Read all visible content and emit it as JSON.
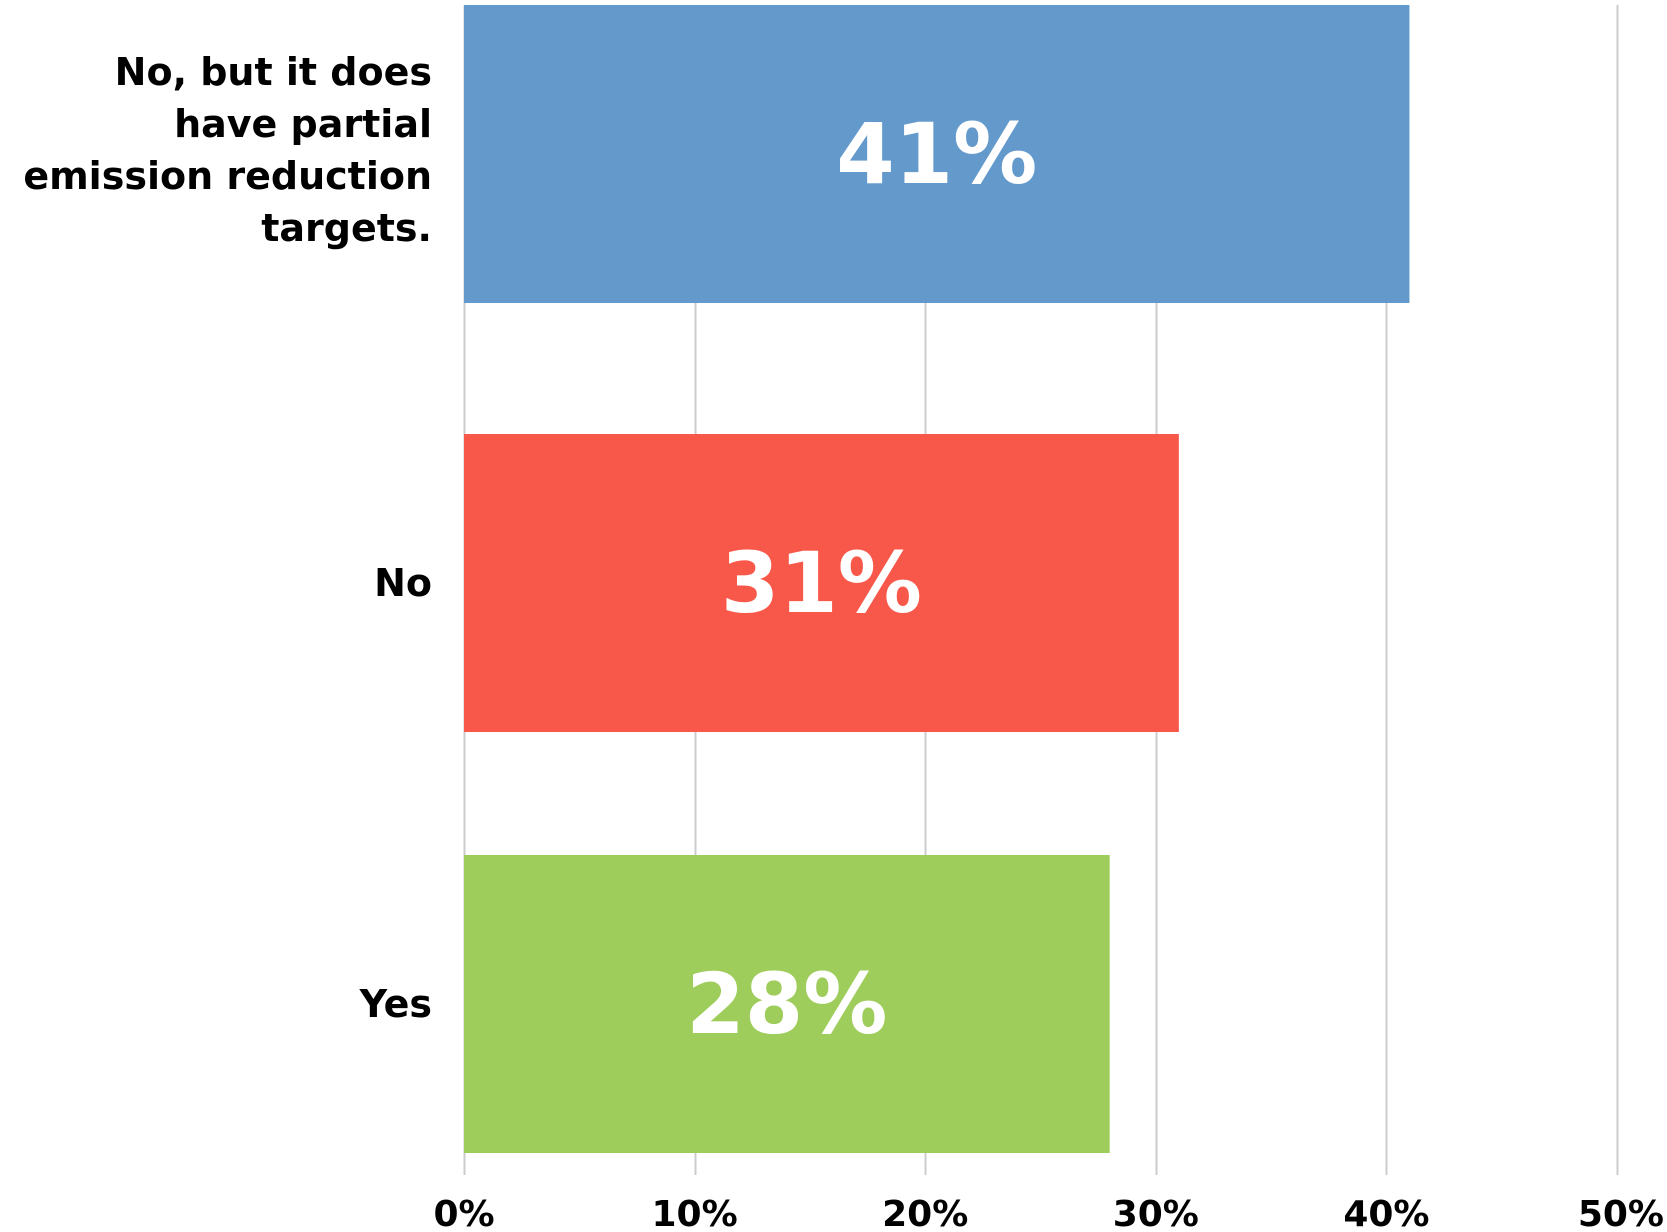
{
  "chart_data": {
    "type": "bar",
    "orientation": "horizontal",
    "categories": [
      "No, but it does have partial emission reduction targets.",
      "No",
      "Yes"
    ],
    "values": [
      41,
      31,
      28
    ],
    "data_labels": [
      "41%",
      "31%",
      "28%"
    ],
    "colors": [
      "#6399CB",
      "#F8584A",
      "#9FCD5C"
    ],
    "xlim": [
      0,
      50
    ],
    "x_ticks": [
      0,
      10,
      20,
      30,
      40,
      50
    ],
    "x_tick_labels": [
      "0%",
      "10%",
      "20%",
      "30%",
      "40%",
      "50%"
    ],
    "grid": true,
    "legend": "none",
    "grid_color": "#CCCCCC"
  }
}
